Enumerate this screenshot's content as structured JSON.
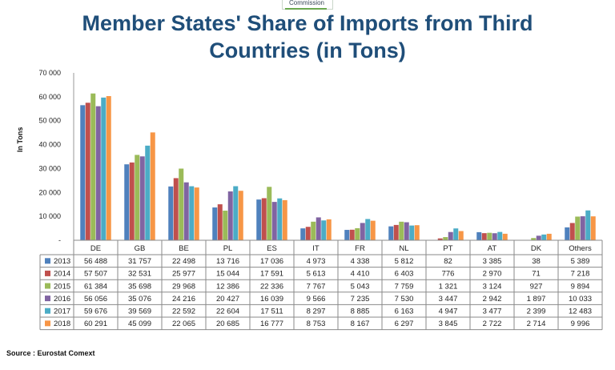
{
  "header": {
    "commission_label": "Commission"
  },
  "title_line1": "Member States' Share of Imports from Third",
  "title_line2": "Countries (in Tons)",
  "source": "Source : Eurostat Comext",
  "colors": {
    "2013": "#4f81bd",
    "2014": "#c0504d",
    "2015": "#9bbb59",
    "2016": "#8064a2",
    "2017": "#4bacc6",
    "2018": "#f79646",
    "title": "#1f4e79"
  },
  "chart_data": {
    "type": "bar",
    "ylabel": "In Tons",
    "ylim": [
      0,
      70000
    ],
    "yticks": [
      "70 000",
      "60 000",
      "50 000",
      "40 000",
      "30 000",
      "20 000",
      "10 000",
      "-"
    ],
    "grid": false,
    "legend": "table-below",
    "categories": [
      "DE",
      "GB",
      "BE",
      "PL",
      "ES",
      "IT",
      "FR",
      "NL",
      "PT",
      "AT",
      "DK",
      "Others"
    ],
    "series": [
      {
        "name": "2013",
        "values": [
          56488,
          31757,
          22498,
          13716,
          17036,
          4973,
          4338,
          5812,
          82,
          3385,
          38,
          5389
        ],
        "labels": [
          "56 488",
          "31 757",
          "22 498",
          "13 716",
          "17 036",
          "4 973",
          "4 338",
          "5 812",
          "82",
          "3 385",
          "38",
          "5 389"
        ]
      },
      {
        "name": "2014",
        "values": [
          57507,
          32531,
          25977,
          15044,
          17591,
          5613,
          4410,
          6403,
          776,
          2970,
          71,
          7218
        ],
        "labels": [
          "57 507",
          "32 531",
          "25 977",
          "15 044",
          "17 591",
          "5 613",
          "4 410",
          "6 403",
          "776",
          "2 970",
          "71",
          "7 218"
        ]
      },
      {
        "name": "2015",
        "values": [
          61384,
          35698,
          29968,
          12386,
          22336,
          7767,
          5043,
          7759,
          1321,
          3124,
          927,
          9894
        ],
        "labels": [
          "61 384",
          "35 698",
          "29 968",
          "12 386",
          "22 336",
          "7 767",
          "5 043",
          "7 759",
          "1 321",
          "3 124",
          "927",
          "9 894"
        ]
      },
      {
        "name": "2016",
        "values": [
          56056,
          35076,
          24216,
          20427,
          16039,
          9566,
          7235,
          7530,
          3447,
          2942,
          1897,
          10033
        ],
        "labels": [
          "56 056",
          "35 076",
          "24 216",
          "20 427",
          "16 039",
          "9 566",
          "7 235",
          "7 530",
          "3 447",
          "2 942",
          "1 897",
          "10 033"
        ]
      },
      {
        "name": "2017",
        "values": [
          59676,
          39569,
          22592,
          22604,
          17511,
          8297,
          8885,
          6163,
          4947,
          3477,
          2399,
          12483
        ],
        "labels": [
          "59 676",
          "39 569",
          "22 592",
          "22 604",
          "17 511",
          "8 297",
          "8 885",
          "6 163",
          "4 947",
          "3 477",
          "2 399",
          "12 483"
        ]
      },
      {
        "name": "2018",
        "values": [
          60291,
          45099,
          22065,
          20685,
          16777,
          8753,
          8167,
          6297,
          3845,
          2722,
          2714,
          9996
        ],
        "labels": [
          "60 291",
          "45 099",
          "22 065",
          "20 685",
          "16 777",
          "8 753",
          "8 167",
          "6 297",
          "3 845",
          "2 722",
          "2 714",
          "9 996"
        ]
      }
    ]
  }
}
